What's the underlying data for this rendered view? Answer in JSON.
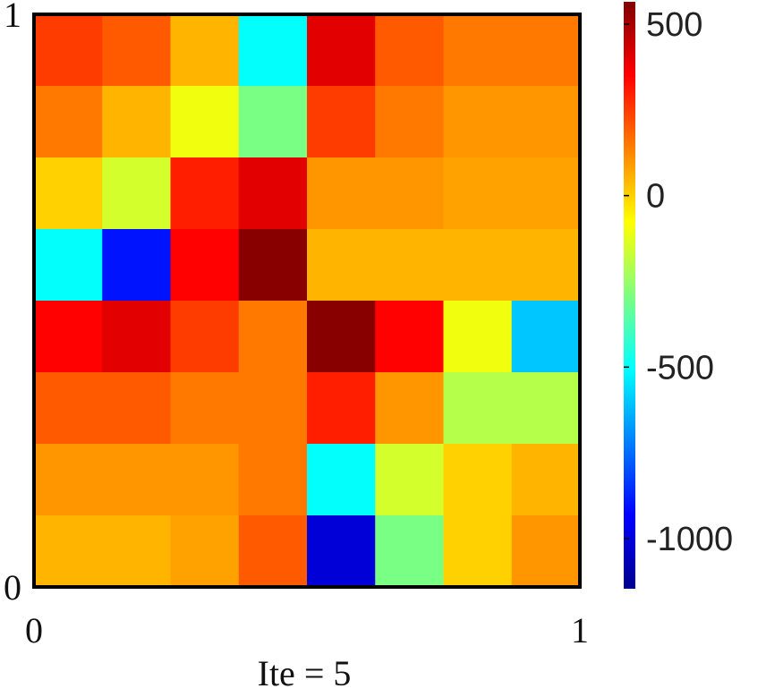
{
  "chart_data": {
    "type": "heatmap",
    "xlabel": "Ite = 5",
    "xlim": [
      0,
      1
    ],
    "ylim": [
      0,
      1
    ],
    "xticks": [
      0,
      1
    ],
    "yticks": [
      0,
      1
    ],
    "clim": [
      -1146,
      565
    ],
    "cticks": [
      500,
      0,
      -500,
      -1000
    ],
    "colormap": "jet",
    "z": [
      [
        250,
        200,
        50,
        -500,
        400,
        200,
        150,
        150
      ],
      [
        150,
        50,
        -100,
        -300,
        250,
        150,
        100,
        100
      ],
      [
        0,
        -150,
        300,
        400,
        100,
        100,
        80,
        80
      ],
      [
        -500,
        -900,
        350,
        550,
        50,
        50,
        50,
        50
      ],
      [
        350,
        400,
        250,
        150,
        550,
        350,
        -100,
        -600
      ],
      [
        200,
        200,
        150,
        150,
        300,
        100,
        -200,
        -200
      ],
      [
        100,
        100,
        100,
        150,
        -500,
        -150,
        0,
        50
      ],
      [
        50,
        50,
        80,
        200,
        -1000,
        -300,
        0,
        100
      ]
    ]
  }
}
